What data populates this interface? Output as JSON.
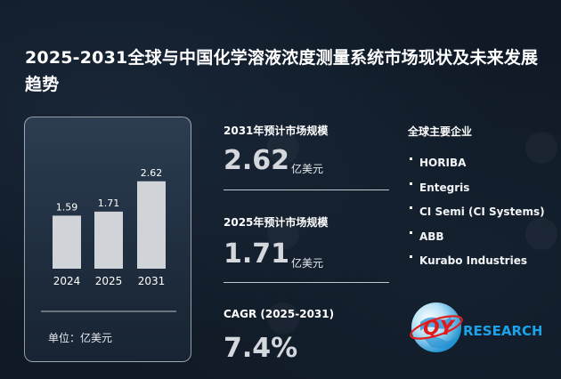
{
  "title": "2025-2031全球与中国化学溶液浓度测量系统市场现状及未来发展趋势",
  "chart_data": {
    "type": "bar",
    "categories": [
      "2024",
      "2025",
      "2031"
    ],
    "values": [
      1.59,
      1.71,
      2.62
    ],
    "value_labels": [
      "1.59",
      "1.71",
      "2.62"
    ],
    "unit_label": "单位：亿美元",
    "bar_color": "#d0d3d8"
  },
  "stats": {
    "s2031": {
      "label": "2031年预计市场规模",
      "value": "2.62",
      "unit": "亿美元"
    },
    "s2025": {
      "label": "2025年预计市场规模",
      "value": "1.71",
      "unit": "亿美元"
    },
    "cagr": {
      "label": "CAGR (2025-2031)",
      "value": "7.4%"
    }
  },
  "companies": {
    "title": "全球主要企业",
    "items": [
      "HORIBA",
      "Entegris",
      "CI Semi (CI Systems)",
      "ABB",
      "Kurabo Industries"
    ]
  },
  "logo": {
    "q": "QY",
    "rest": "RESEARCH",
    "brand_color": "#1aa3e8"
  },
  "colors": {
    "background": "#101a26",
    "card": "#2c3d52",
    "text_muted": "#d4d7dc"
  }
}
